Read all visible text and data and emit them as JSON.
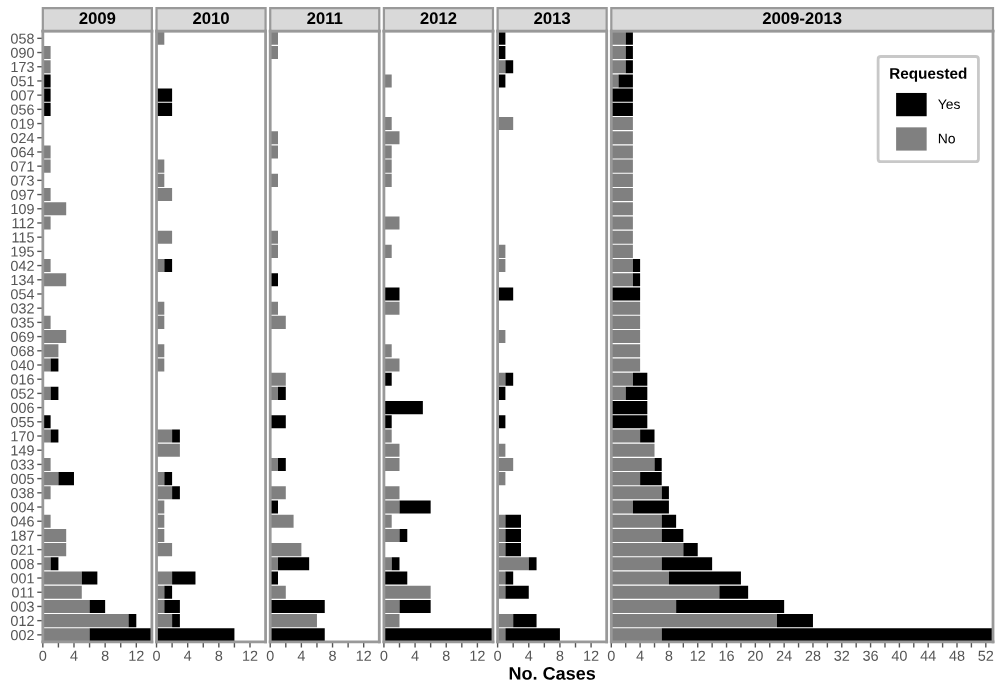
{
  "chart_data": [
    {
      "type": "bar",
      "orientation": "horizontal",
      "stacked": true,
      "title": "2009",
      "tick_labels": "xy",
      "categories": [
        "058",
        "090",
        "173",
        "051",
        "007",
        "056",
        "019",
        "024",
        "064",
        "071",
        "073",
        "097",
        "109",
        "112",
        "115",
        "195",
        "042",
        "134",
        "054",
        "032",
        "035",
        "069",
        "068",
        "040",
        "016",
        "052",
        "006",
        "055",
        "170",
        "149",
        "033",
        "005",
        "038",
        "004",
        "046",
        "187",
        "021",
        "008",
        "001",
        "011",
        "003",
        "012",
        "002"
      ],
      "xlim": [
        0,
        14
      ],
      "xticks": [
        0,
        {
          "value": 2,
          "label": null
        },
        4,
        {
          "value": 6,
          "label": null
        },
        8,
        {
          "value": 10,
          "label": null
        },
        12
      ],
      "series": [
        {
          "color": "#808080",
          "values": [
            0,
            1,
            1,
            0,
            0,
            0,
            0,
            0,
            1,
            1,
            0,
            1,
            3,
            1,
            0,
            0,
            1,
            3,
            0,
            0,
            1,
            3,
            2,
            1,
            0,
            1,
            0,
            0,
            1,
            0,
            1,
            2,
            1,
            0,
            1,
            3,
            3,
            1,
            5,
            5,
            6,
            11,
            6
          ]
        },
        {
          "color": "#000000",
          "values": [
            0,
            0,
            0,
            1,
            1,
            1,
            0,
            0,
            0,
            0,
            0,
            0,
            0,
            0,
            0,
            0,
            0,
            0,
            0,
            0,
            0,
            0,
            0,
            1,
            0,
            1,
            0,
            1,
            1,
            0,
            0,
            2,
            0,
            0,
            0,
            0,
            0,
            1,
            2,
            0,
            2,
            1,
            8
          ]
        }
      ]
    },
    {
      "type": "bar",
      "orientation": "horizontal",
      "stacked": true,
      "title": "2010",
      "tick_labels": "x",
      "categories": [
        "058",
        "090",
        "173",
        "051",
        "007",
        "056",
        "019",
        "024",
        "064",
        "071",
        "073",
        "097",
        "109",
        "112",
        "115",
        "195",
        "042",
        "134",
        "054",
        "032",
        "035",
        "069",
        "068",
        "040",
        "016",
        "052",
        "006",
        "055",
        "170",
        "149",
        "033",
        "005",
        "038",
        "004",
        "046",
        "187",
        "021",
        "008",
        "001",
        "011",
        "003",
        "012",
        "002"
      ],
      "xlim": [
        0,
        14
      ],
      "xticks": [
        0,
        {
          "value": 2,
          "label": null
        },
        4,
        {
          "value": 6,
          "label": null
        },
        8,
        {
          "value": 10,
          "label": null
        },
        12
      ],
      "series": [
        {
          "color": "#808080",
          "values": [
            1,
            0,
            0,
            0,
            0,
            0,
            0,
            0,
            0,
            1,
            1,
            2,
            0,
            0,
            2,
            0,
            1,
            0,
            0,
            1,
            1,
            0,
            1,
            1,
            0,
            0,
            0,
            0,
            2,
            3,
            0,
            1,
            2,
            1,
            1,
            1,
            2,
            0,
            2,
            1,
            1,
            2,
            0
          ]
        },
        {
          "color": "#000000",
          "values": [
            0,
            0,
            0,
            0,
            2,
            2,
            0,
            0,
            0,
            0,
            0,
            0,
            0,
            0,
            0,
            0,
            1,
            0,
            0,
            0,
            0,
            0,
            0,
            0,
            0,
            0,
            0,
            0,
            1,
            0,
            0,
            1,
            1,
            0,
            0,
            0,
            0,
            0,
            3,
            1,
            2,
            1,
            10
          ]
        }
      ]
    },
    {
      "type": "bar",
      "orientation": "horizontal",
      "stacked": true,
      "title": "2011",
      "tick_labels": "x",
      "categories": [
        "058",
        "090",
        "173",
        "051",
        "007",
        "056",
        "019",
        "024",
        "064",
        "071",
        "073",
        "097",
        "109",
        "112",
        "115",
        "195",
        "042",
        "134",
        "054",
        "032",
        "035",
        "069",
        "068",
        "040",
        "016",
        "052",
        "006",
        "055",
        "170",
        "149",
        "033",
        "005",
        "038",
        "004",
        "046",
        "187",
        "021",
        "008",
        "001",
        "011",
        "003",
        "012",
        "002"
      ],
      "xlim": [
        0,
        14
      ],
      "xticks": [
        0,
        {
          "value": 2,
          "label": null
        },
        4,
        {
          "value": 6,
          "label": null
        },
        8,
        {
          "value": 10,
          "label": null
        },
        12
      ],
      "series": [
        {
          "color": "#808080",
          "values": [
            1,
            1,
            0,
            0,
            0,
            0,
            0,
            1,
            1,
            0,
            1,
            0,
            0,
            0,
            1,
            1,
            0,
            0,
            0,
            1,
            2,
            0,
            0,
            0,
            2,
            1,
            0,
            0,
            0,
            0,
            1,
            0,
            2,
            0,
            3,
            0,
            4,
            1,
            0,
            2,
            0,
            6,
            0
          ]
        },
        {
          "color": "#000000",
          "values": [
            0,
            0,
            0,
            0,
            0,
            0,
            0,
            0,
            0,
            0,
            0,
            0,
            0,
            0,
            0,
            0,
            0,
            1,
            0,
            0,
            0,
            0,
            0,
            0,
            0,
            1,
            0,
            2,
            0,
            0,
            1,
            0,
            0,
            1,
            0,
            0,
            0,
            4,
            1,
            0,
            7,
            0,
            7
          ]
        }
      ]
    },
    {
      "type": "bar",
      "orientation": "horizontal",
      "stacked": true,
      "title": "2012",
      "tick_labels": "x",
      "categories": [
        "058",
        "090",
        "173",
        "051",
        "007",
        "056",
        "019",
        "024",
        "064",
        "071",
        "073",
        "097",
        "109",
        "112",
        "115",
        "195",
        "042",
        "134",
        "054",
        "032",
        "035",
        "069",
        "068",
        "040",
        "016",
        "052",
        "006",
        "055",
        "170",
        "149",
        "033",
        "005",
        "038",
        "004",
        "046",
        "187",
        "021",
        "008",
        "001",
        "011",
        "003",
        "012",
        "002"
      ],
      "xlim": [
        0,
        14
      ],
      "xticks": [
        0,
        {
          "value": 2,
          "label": null
        },
        4,
        {
          "value": 6,
          "label": null
        },
        8,
        {
          "value": 10,
          "label": null
        },
        12
      ],
      "series": [
        {
          "color": "#808080",
          "values": [
            0,
            0,
            0,
            1,
            0,
            0,
            1,
            2,
            1,
            1,
            1,
            0,
            0,
            2,
            0,
            1,
            0,
            0,
            0,
            2,
            0,
            0,
            1,
            2,
            0,
            0,
            0,
            0,
            1,
            2,
            2,
            0,
            2,
            2,
            1,
            2,
            0,
            1,
            0,
            6,
            2,
            2,
            0
          ]
        },
        {
          "color": "#000000",
          "values": [
            0,
            0,
            0,
            0,
            0,
            0,
            0,
            0,
            0,
            0,
            0,
            0,
            0,
            0,
            0,
            0,
            0,
            0,
            2,
            0,
            0,
            0,
            0,
            0,
            1,
            0,
            5,
            1,
            0,
            0,
            0,
            0,
            0,
            4,
            0,
            1,
            0,
            1,
            3,
            0,
            4,
            0,
            14
          ]
        }
      ]
    },
    {
      "type": "bar",
      "orientation": "horizontal",
      "stacked": true,
      "title": "2013",
      "xlabel": "No. Cases",
      "tick_labels": "x",
      "categories": [
        "058",
        "090",
        "173",
        "051",
        "007",
        "056",
        "019",
        "024",
        "064",
        "071",
        "073",
        "097",
        "109",
        "112",
        "115",
        "195",
        "042",
        "134",
        "054",
        "032",
        "035",
        "069",
        "068",
        "040",
        "016",
        "052",
        "006",
        "055",
        "170",
        "149",
        "033",
        "005",
        "038",
        "004",
        "046",
        "187",
        "021",
        "008",
        "001",
        "011",
        "003",
        "012",
        "002"
      ],
      "xlim": [
        0,
        14
      ],
      "xticks": [
        0,
        {
          "value": 2,
          "label": null
        },
        4,
        {
          "value": 6,
          "label": null
        },
        8,
        {
          "value": 10,
          "label": null
        },
        12
      ],
      "series": [
        {
          "color": "#808080",
          "values": [
            0,
            0,
            1,
            0,
            0,
            0,
            2,
            0,
            0,
            0,
            0,
            0,
            0,
            0,
            0,
            1,
            1,
            0,
            0,
            0,
            0,
            1,
            0,
            0,
            1,
            0,
            0,
            0,
            0,
            1,
            2,
            1,
            0,
            0,
            1,
            1,
            1,
            4,
            1,
            1,
            0,
            2,
            1
          ]
        },
        {
          "color": "#000000",
          "values": [
            1,
            1,
            1,
            1,
            0,
            0,
            0,
            0,
            0,
            0,
            0,
            0,
            0,
            0,
            0,
            0,
            0,
            0,
            2,
            0,
            0,
            0,
            0,
            0,
            1,
            1,
            0,
            1,
            0,
            0,
            0,
            0,
            0,
            0,
            2,
            2,
            2,
            1,
            1,
            3,
            0,
            3,
            7
          ]
        }
      ]
    },
    {
      "type": "bar",
      "orientation": "horizontal",
      "stacked": true,
      "title": "2009-2013",
      "tick_labels": "x",
      "legend": "top right",
      "legend_title": "Requested",
      "categories": [
        "058",
        "090",
        "173",
        "051",
        "007",
        "056",
        "019",
        "024",
        "064",
        "071",
        "073",
        "097",
        "109",
        "112",
        "115",
        "195",
        "042",
        "134",
        "054",
        "032",
        "035",
        "069",
        "068",
        "040",
        "016",
        "052",
        "006",
        "055",
        "170",
        "149",
        "033",
        "005",
        "038",
        "004",
        "046",
        "187",
        "021",
        "008",
        "001",
        "011",
        "003",
        "012",
        "002"
      ],
      "xlim": [
        0,
        53
      ],
      "xticks": [
        0,
        {
          "value": 2,
          "label": null
        },
        4,
        {
          "value": 6,
          "label": null
        },
        8,
        {
          "value": 10,
          "label": null
        },
        12,
        {
          "value": 14,
          "label": null
        },
        16,
        {
          "value": 18,
          "label": null
        },
        20,
        {
          "value": 22,
          "label": null
        },
        24,
        {
          "value": 26,
          "label": null
        },
        28,
        {
          "value": 30,
          "label": null
        },
        32,
        {
          "value": 34,
          "label": null
        },
        36,
        {
          "value": 38,
          "label": null
        },
        40,
        {
          "value": 42,
          "label": null
        },
        44,
        {
          "value": 46,
          "label": null
        },
        48,
        {
          "value": 50,
          "label": null
        },
        52
      ],
      "series": [
        {
          "name": "No",
          "color": "#808080",
          "values": [
            2,
            2,
            2,
            1,
            0,
            0,
            3,
            3,
            3,
            3,
            3,
            3,
            3,
            3,
            3,
            3,
            3,
            3,
            0,
            4,
            4,
            4,
            4,
            4,
            3,
            2,
            0,
            0,
            4,
            6,
            6,
            4,
            7,
            3,
            7,
            7,
            10,
            7,
            8,
            15,
            9,
            23,
            7
          ]
        },
        {
          "name": "Yes",
          "color": "#000000",
          "values": [
            1,
            1,
            1,
            2,
            3,
            3,
            0,
            0,
            0,
            0,
            0,
            0,
            0,
            0,
            0,
            0,
            1,
            1,
            4,
            0,
            0,
            0,
            0,
            0,
            2,
            3,
            5,
            5,
            2,
            0,
            1,
            3,
            1,
            5,
            2,
            3,
            2,
            7,
            10,
            4,
            15,
            5,
            46
          ]
        }
      ]
    }
  ]
}
